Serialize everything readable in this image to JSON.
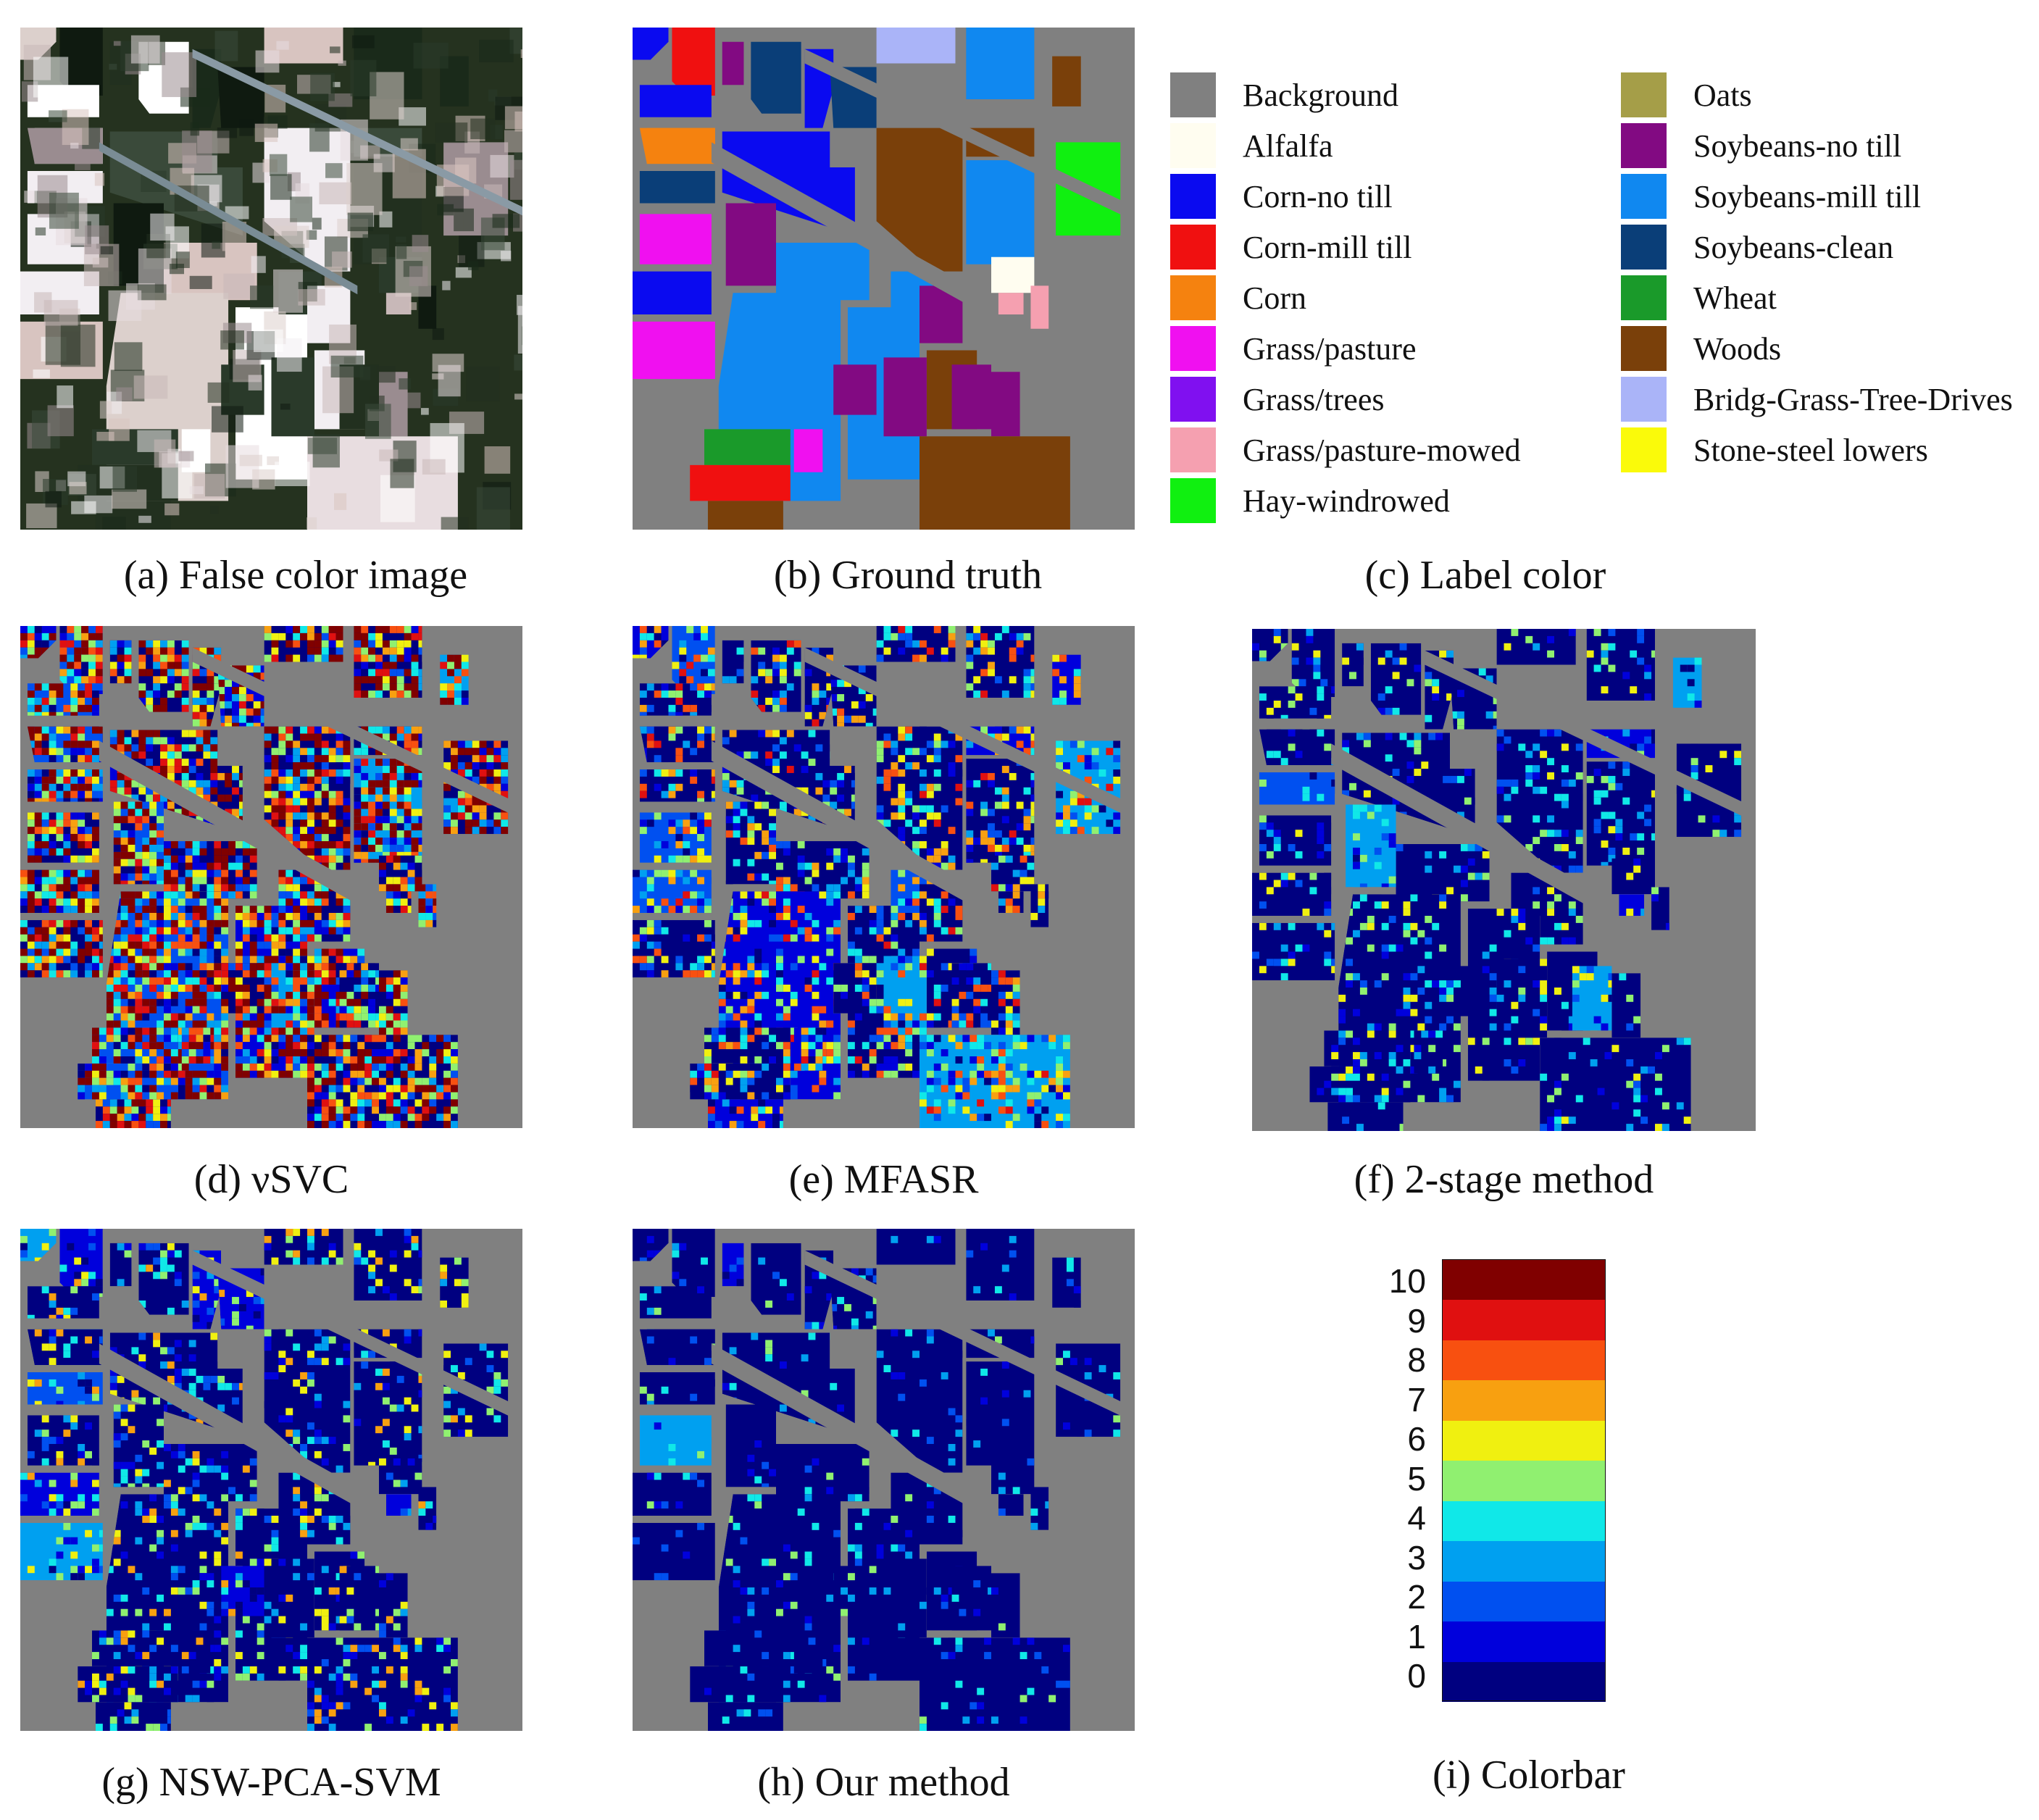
{
  "panels": {
    "a": {
      "caption": "(a) False color image"
    },
    "b": {
      "caption": "(b) Ground truth"
    },
    "c": {
      "caption": "(c) Label color"
    },
    "d": {
      "caption": "(d) νSVC"
    },
    "e": {
      "caption": "(e) MFASR"
    },
    "f": {
      "caption": "(f) 2-stage method"
    },
    "g": {
      "caption": "(g) NSW-PCA-SVM"
    },
    "h": {
      "caption": "(h) Our method"
    },
    "i": {
      "caption": "(i) Colorbar"
    }
  },
  "legend": {
    "left": [
      {
        "label": "Background",
        "color": "#808080"
      },
      {
        "label": "Alfalfa",
        "color": "#fffdf0"
      },
      {
        "label": "Corn-no till",
        "color": "#0a0af0"
      },
      {
        "label": "Corn-mill till",
        "color": "#f01010"
      },
      {
        "label": "Corn",
        "color": "#f5820f"
      },
      {
        "label": "Grass/pasture",
        "color": "#f010f0"
      },
      {
        "label": "Grass/trees",
        "color": "#8010f0"
      },
      {
        "label": "Grass/pasture-mowed",
        "color": "#f5a0b0"
      },
      {
        "label": "Hay-windrowed",
        "color": "#10f010"
      }
    ],
    "right": [
      {
        "label": "Oats",
        "color": "#a59e48"
      },
      {
        "label": "Soybeans-no till",
        "color": "#820a82"
      },
      {
        "label": "Soybeans-mill till",
        "color": "#1088f0"
      },
      {
        "label": "Soybeans-clean",
        "color": "#0a3e78"
      },
      {
        "label": "Wheat",
        "color": "#1a9a2a"
      },
      {
        "label": "Woods",
        "color": "#7a400a"
      },
      {
        "label": "Bridg-Grass-Tree-Drives",
        "color": "#aab4f8"
      },
      {
        "label": "Stone-steel lowers",
        "color": "#fafa0a"
      }
    ]
  },
  "colorbar": {
    "ticks": [
      "10",
      "9",
      "8",
      "7",
      "6",
      "5",
      "4",
      "3",
      "2",
      "1",
      "0"
    ],
    "colors": [
      "#000080",
      "#0000dc",
      "#0050f0",
      "#00a0f0",
      "#10e8e8",
      "#90f070",
      "#f0f010",
      "#f8a010",
      "#f85010",
      "#e01010",
      "#800000"
    ]
  },
  "palettes": {
    "false_color": [
      "#1a2a1a",
      "#2a3a2a",
      "#dcd0cc",
      "#e8dde0",
      "#d8c4c0",
      "#f2eef2",
      "#3a4a3a",
      "#22301f",
      "#c8b8b8",
      "#9a8c90",
      "#0f1a10",
      "#ffffff"
    ],
    "ground_truth": [
      "#0a0af0",
      "#f01010",
      "#f5820f",
      "#f010f0",
      "#8010f0",
      "#10f010",
      "#820a82",
      "#1088f0",
      "#0a3e78",
      "#1a9a2a",
      "#7a400a",
      "#aab4f8",
      "#fafa0a",
      "#f5a0b0",
      "#fffdf0"
    ],
    "error_map": [
      "#000080",
      "#0000dc",
      "#0050f0",
      "#00a0f0",
      "#10e8e8",
      "#90f070",
      "#f0f010",
      "#f8a010",
      "#f85010",
      "#e01010",
      "#800000"
    ]
  }
}
